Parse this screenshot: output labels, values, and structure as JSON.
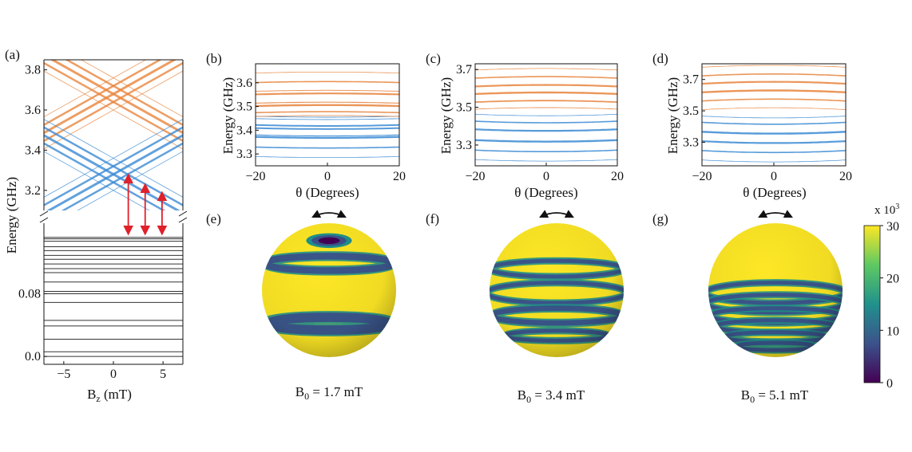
{
  "colors": {
    "upper_branch": "#e8843c",
    "lower_branch": "#3a8ad4",
    "ground_levels": "#333333",
    "transition_arrows": "#e0202a",
    "colormap": [
      "#440154",
      "#3b528b",
      "#21918c",
      "#5ec962",
      "#fde725"
    ]
  },
  "chart_data": [
    {
      "panel": "(a)",
      "type": "line",
      "xlabel": "B",
      "xlabel_sub": "z",
      "xlabel_unit": " (mT)",
      "ylabel": "Energy (GHz)",
      "xlim": [
        -7,
        7
      ],
      "xticks": [
        -5,
        0,
        5
      ],
      "xtick_labels": [
        "−5",
        "0",
        "5"
      ],
      "broken_axis": true,
      "upper_ylim": [
        3.1,
        3.85
      ],
      "upper_yticks": [
        3.2,
        3.4,
        3.6,
        3.8
      ],
      "upper_ytick_labels": [
        "3.2",
        "3.4",
        "3.6",
        "3.8"
      ],
      "lower_ylim": [
        -0.01,
        0.17
      ],
      "lower_yticks": [
        0.0,
        0.08
      ],
      "lower_ytick_labels": [
        "0.0",
        "0.08"
      ],
      "upper_lines": {
        "slope_ghz_per_mT": 0.0277,
        "orange_centers": [
          3.6,
          3.64,
          3.68,
          3.72,
          3.76
        ],
        "blue_centers": [
          3.2,
          3.24,
          3.28,
          3.32,
          3.36
        ],
        "line_widths": [
          0.8,
          2.5,
          3.0,
          2.5,
          0.8
        ]
      },
      "ground_levels": [
        0.0,
        0.006,
        0.022,
        0.039,
        0.046,
        0.069,
        0.08,
        0.083,
        0.095,
        0.107,
        0.112,
        0.118,
        0.124,
        0.129,
        0.135,
        0.14,
        0.147,
        0.15,
        0.152
      ],
      "arrows_x": [
        1.5,
        3.2,
        4.9
      ]
    },
    {
      "panel": "(b)",
      "type": "line",
      "xlabel": "θ (Degrees)",
      "ylabel": "Energy (GHz)",
      "xlim": [
        -20,
        20
      ],
      "ylim": [
        3.25,
        3.68
      ],
      "xticks": [
        -20,
        0,
        20
      ],
      "xtick_labels": [
        "−20",
        "0",
        "20"
      ],
      "yticks": [
        3.3,
        3.4,
        3.5,
        3.6
      ],
      "ytick_labels": [
        "3.3",
        "3.4",
        "3.5",
        "3.6"
      ],
      "series": [
        {
          "group": "blue",
          "center": 3.285,
          "curvature": 0.004,
          "width": 0.8
        },
        {
          "group": "blue",
          "center": 3.325,
          "curvature": 0.004,
          "width": 1.6
        },
        {
          "group": "blue",
          "center": 3.368,
          "curvature": 0.004,
          "width": 2.4
        },
        {
          "group": "blue",
          "center": 3.376,
          "curvature": 0.004,
          "width": 1.2
        },
        {
          "group": "blue",
          "center": 3.405,
          "curvature": 0.004,
          "width": 2.0
        },
        {
          "group": "blue",
          "center": 3.418,
          "curvature": 0.004,
          "width": 2.0
        },
        {
          "group": "blue",
          "center": 3.445,
          "curvature": 0.004,
          "width": 0.9
        },
        {
          "group": "blue",
          "center": 3.455,
          "curvature": 0.004,
          "width": 0.9
        },
        {
          "group": "orange",
          "center": 3.462,
          "curvature": -0.004,
          "width": 0.9
        },
        {
          "group": "orange",
          "center": 3.478,
          "curvature": -0.004,
          "width": 1.6
        },
        {
          "group": "orange",
          "center": 3.506,
          "curvature": -0.004,
          "width": 2.4
        },
        {
          "group": "orange",
          "center": 3.518,
          "curvature": -0.004,
          "width": 1.2
        },
        {
          "group": "orange",
          "center": 3.555,
          "curvature": -0.004,
          "width": 2.2
        },
        {
          "group": "orange",
          "center": 3.568,
          "curvature": -0.004,
          "width": 1.0
        },
        {
          "group": "orange",
          "center": 3.605,
          "curvature": -0.004,
          "width": 1.6
        },
        {
          "group": "orange",
          "center": 3.645,
          "curvature": -0.004,
          "width": 0.8
        }
      ]
    },
    {
      "panel": "(c)",
      "type": "line",
      "xlabel": "θ (Degrees)",
      "ylabel": "Energy (GHz)",
      "xlim": [
        -20,
        20
      ],
      "ylim": [
        3.19,
        3.73
      ],
      "xticks": [
        -20,
        0,
        20
      ],
      "xtick_labels": [
        "−20",
        "0",
        "20"
      ],
      "yticks": [
        3.3,
        3.5,
        3.7
      ],
      "ytick_labels": [
        "3.3",
        "3.5",
        "3.7"
      ],
      "series": [
        {
          "group": "blue",
          "center": 3.215,
          "curvature": 0.008,
          "width": 0.8
        },
        {
          "group": "blue",
          "center": 3.265,
          "curvature": 0.008,
          "width": 1.6
        },
        {
          "group": "blue",
          "center": 3.318,
          "curvature": 0.008,
          "width": 2.4
        },
        {
          "group": "blue",
          "center": 3.375,
          "curvature": 0.008,
          "width": 2.2
        },
        {
          "group": "blue",
          "center": 3.418,
          "curvature": 0.008,
          "width": 1.6
        },
        {
          "group": "blue",
          "center": 3.455,
          "curvature": 0.008,
          "width": 0.8
        },
        {
          "group": "orange",
          "center": 3.498,
          "curvature": -0.008,
          "width": 0.9
        },
        {
          "group": "orange",
          "center": 3.535,
          "curvature": -0.008,
          "width": 1.8
        },
        {
          "group": "orange",
          "center": 3.578,
          "curvature": -0.008,
          "width": 2.4
        },
        {
          "group": "orange",
          "center": 3.618,
          "curvature": -0.008,
          "width": 2.2
        },
        {
          "group": "orange",
          "center": 3.662,
          "curvature": -0.008,
          "width": 1.6
        },
        {
          "group": "orange",
          "center": 3.705,
          "curvature": -0.008,
          "width": 0.8
        }
      ]
    },
    {
      "panel": "(d)",
      "type": "line",
      "xlabel": "θ (Degrees)",
      "ylabel": "Energy (GHz)",
      "xlim": [
        -20,
        20
      ],
      "ylim": [
        3.15,
        3.8
      ],
      "xticks": [
        -20,
        0,
        20
      ],
      "xtick_labels": [
        "−20",
        "0",
        "20"
      ],
      "yticks": [
        3.3,
        3.5,
        3.7
      ],
      "ytick_labels": [
        "3.3",
        "3.5",
        "3.7"
      ],
      "series": [
        {
          "group": "blue",
          "center": 3.175,
          "curvature": 0.012,
          "width": 0.8
        },
        {
          "group": "blue",
          "center": 3.235,
          "curvature": 0.012,
          "width": 1.6
        },
        {
          "group": "blue",
          "center": 3.295,
          "curvature": 0.012,
          "width": 2.2
        },
        {
          "group": "blue",
          "center": 3.355,
          "curvature": 0.012,
          "width": 2.4
        },
        {
          "group": "blue",
          "center": 3.415,
          "curvature": 0.012,
          "width": 1.6
        },
        {
          "group": "blue",
          "center": 3.455,
          "curvature": 0.012,
          "width": 0.8
        },
        {
          "group": "orange",
          "center": 3.52,
          "curvature": -0.012,
          "width": 0.8
        },
        {
          "group": "orange",
          "center": 3.575,
          "curvature": -0.012,
          "width": 1.6
        },
        {
          "group": "orange",
          "center": 3.63,
          "curvature": -0.012,
          "width": 2.4
        },
        {
          "group": "orange",
          "center": 3.685,
          "curvature": -0.012,
          "width": 2.2
        },
        {
          "group": "orange",
          "center": 3.735,
          "curvature": -0.012,
          "width": 1.6
        },
        {
          "group": "orange",
          "center": 3.79,
          "curvature": -0.012,
          "width": 0.8
        }
      ]
    },
    {
      "panel": "(e)",
      "type": "heatmap",
      "label_main": "B",
      "label_sub": "0",
      "label_value": " = 1.7 mT",
      "polar_cap": true,
      "bands": [
        {
          "position": 0.3,
          "width": 0.05
        },
        {
          "position": 0.75,
          "width": 0.07
        }
      ]
    },
    {
      "panel": "(f)",
      "type": "heatmap",
      "label_main": "B",
      "label_sub": "0",
      "label_value": " = 3.4 mT",
      "polar_cap": false,
      "bands": [
        {
          "position": 0.34,
          "width": 0.03
        },
        {
          "position": 0.52,
          "width": 0.03
        },
        {
          "position": 0.69,
          "width": 0.04
        },
        {
          "position": 0.84,
          "width": 0.03
        }
      ]
    },
    {
      "panel": "(g)",
      "type": "heatmap",
      "label_main": "B",
      "label_sub": "0",
      "label_value": " = 5.1 mT",
      "polar_cap": false,
      "bands": [
        {
          "position": 0.52,
          "width": 0.025
        },
        {
          "position": 0.6,
          "width": 0.02
        },
        {
          "position": 0.69,
          "width": 0.03
        },
        {
          "position": 0.77,
          "width": 0.025
        },
        {
          "position": 0.85,
          "width": 0.025
        },
        {
          "position": 0.92,
          "width": 0.02
        }
      ]
    },
    {
      "panel": "colorbar",
      "type": "colorbar",
      "range": [
        0,
        30
      ],
      "ticks": [
        0,
        10,
        20,
        30
      ],
      "tick_labels": [
        "0",
        "10",
        "20",
        "30"
      ],
      "scale_label": "x 10",
      "scale_exponent": "3"
    }
  ]
}
